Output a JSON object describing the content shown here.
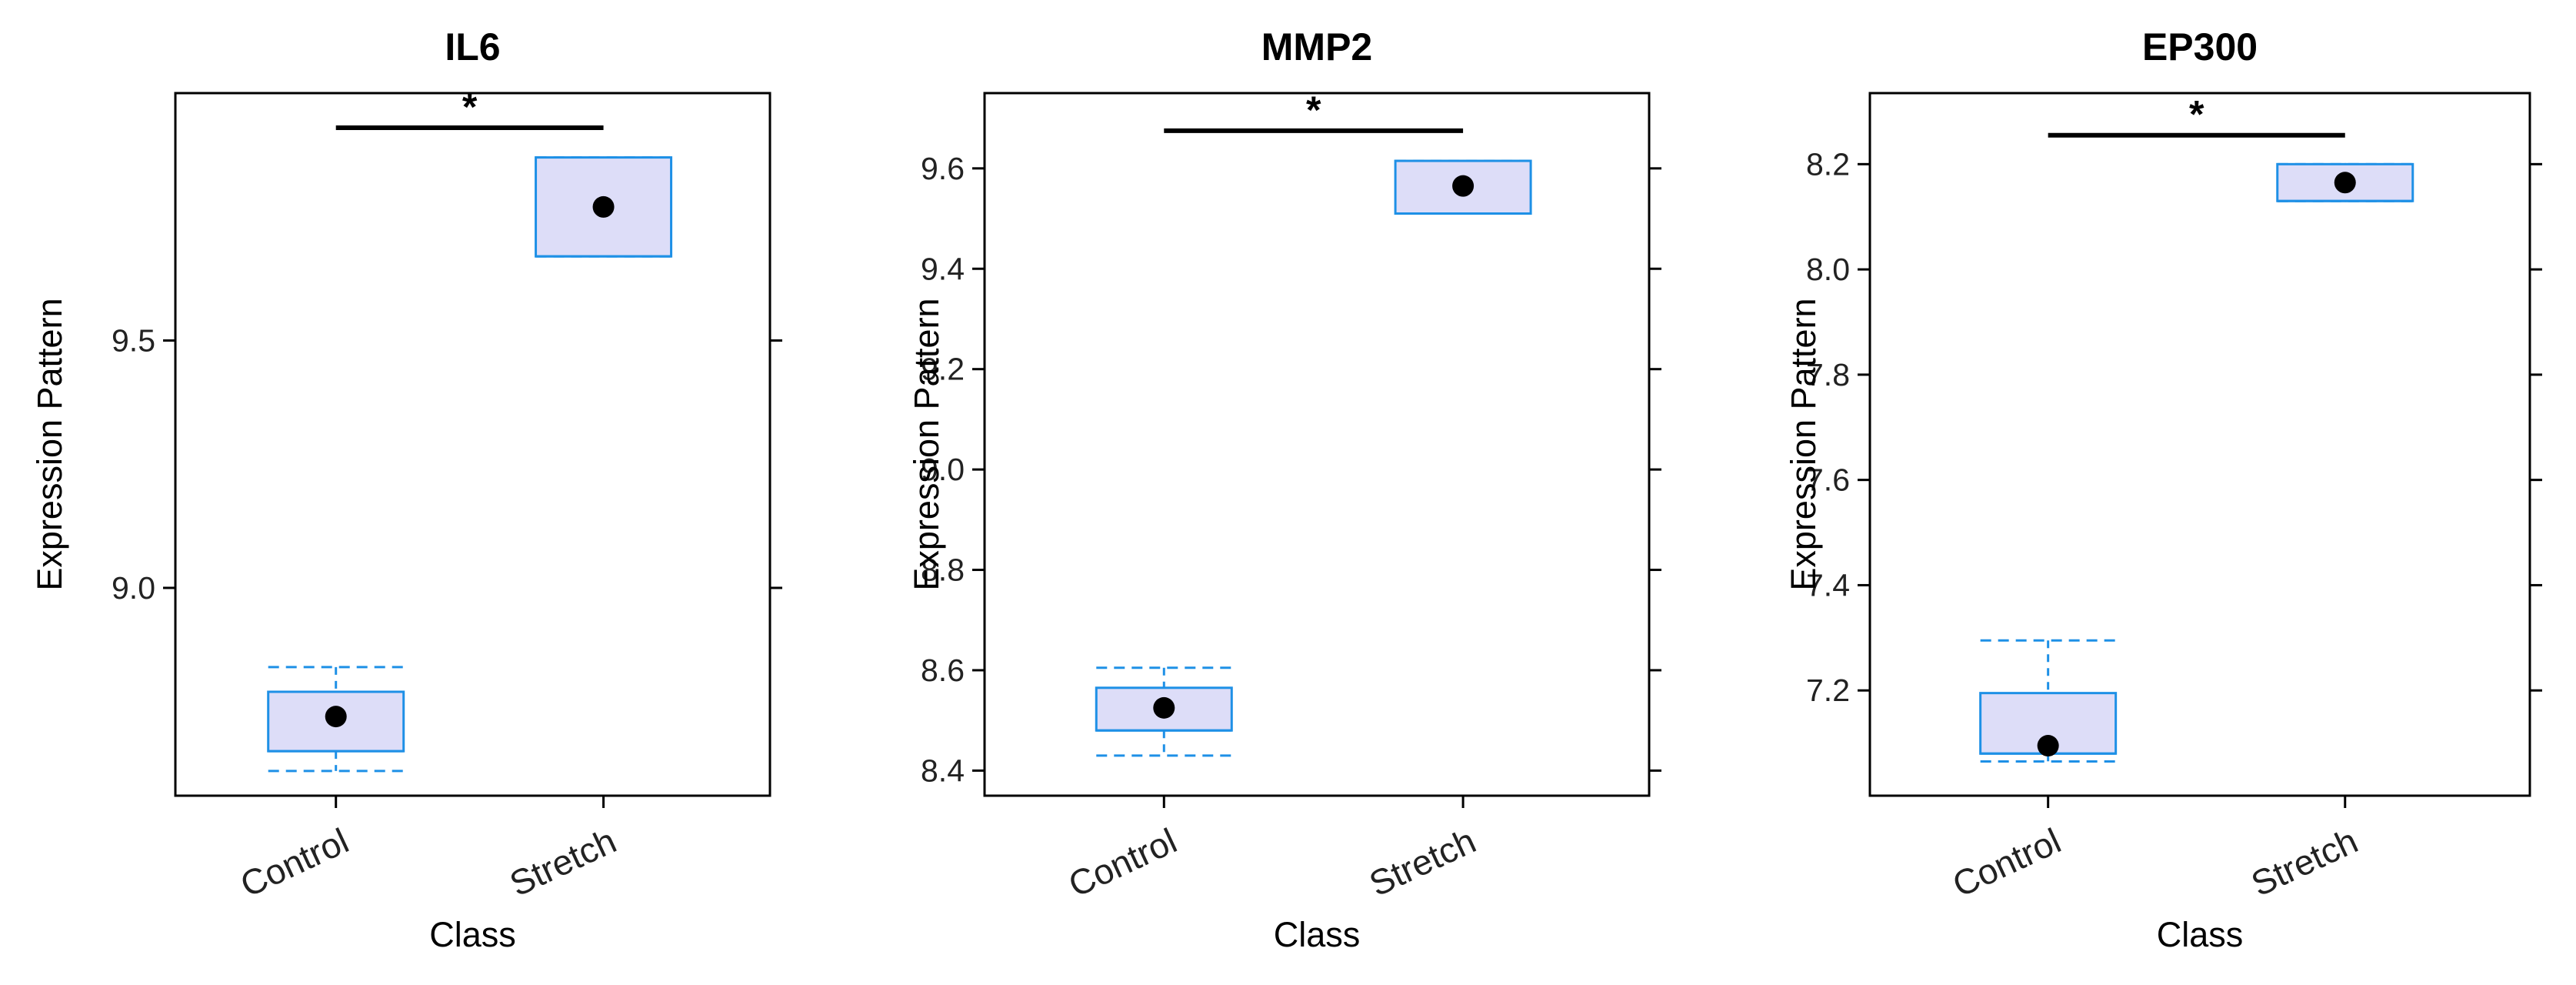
{
  "chart_data": [
    {
      "type": "box",
      "title": "IL6",
      "xlabel": "Class",
      "ylabel": "Expression Pattern",
      "categories": [
        "Control",
        "Stretch"
      ],
      "ylim": [
        8.58,
        10.0
      ],
      "y_ticks": [
        9.0,
        9.5
      ],
      "y_tick_labels": [
        "9.0",
        "9.5"
      ],
      "boxes": [
        {
          "category": "Control",
          "q1": 8.67,
          "median": 8.67,
          "q3": 8.79,
          "whisker_low": 8.63,
          "whisker_high": 8.84,
          "mean": 8.74
        },
        {
          "category": "Stretch",
          "q1": 9.67,
          "median": 9.67,
          "q3": 9.87,
          "whisker_low": 9.67,
          "whisker_high": 9.87,
          "mean": 9.77
        }
      ],
      "significance": {
        "between": [
          "Control",
          "Stretch"
        ],
        "label": "*",
        "y": 9.93
      }
    },
    {
      "type": "box",
      "title": "MMP2",
      "xlabel": "Class",
      "ylabel": "Expression Pattern",
      "categories": [
        "Control",
        "Stretch"
      ],
      "ylim": [
        8.35,
        9.75
      ],
      "y_ticks": [
        8.4,
        8.6,
        8.8,
        9.0,
        9.2,
        9.4,
        9.6
      ],
      "y_tick_labels": [
        "8.4",
        "8.6",
        "8.8",
        "9.0",
        "9.2",
        "9.4",
        "9.6"
      ],
      "boxes": [
        {
          "category": "Control",
          "q1": 8.48,
          "median": 8.48,
          "q3": 8.565,
          "whisker_low": 8.43,
          "whisker_high": 8.605,
          "mean": 8.525
        },
        {
          "category": "Stretch",
          "q1": 9.51,
          "median": 9.51,
          "q3": 9.615,
          "whisker_low": 9.51,
          "whisker_high": 9.615,
          "mean": 9.565
        }
      ],
      "significance": {
        "between": [
          "Control",
          "Stretch"
        ],
        "label": "*",
        "y": 9.675
      }
    },
    {
      "type": "box",
      "title": "EP300",
      "xlabel": "Class",
      "ylabel": "Expression Pattern",
      "categories": [
        "Control",
        "Stretch"
      ],
      "ylim": [
        7.0,
        8.335
      ],
      "y_ticks": [
        7.2,
        7.4,
        7.6,
        7.8,
        8.0,
        8.2
      ],
      "y_tick_labels": [
        "7.2",
        "7.4",
        "7.6",
        "7.8",
        "8.0",
        "8.2"
      ],
      "boxes": [
        {
          "category": "Control",
          "q1": 7.08,
          "median": 7.08,
          "q3": 7.195,
          "whisker_low": 7.065,
          "whisker_high": 7.295,
          "mean": 7.095
        },
        {
          "category": "Stretch",
          "q1": 8.13,
          "median": 8.13,
          "q3": 8.2,
          "whisker_low": 8.13,
          "whisker_high": 8.2,
          "mean": 8.165
        }
      ],
      "significance": {
        "between": [
          "Control",
          "Stretch"
        ],
        "label": "*",
        "y": 8.255
      }
    }
  ],
  "colors": {
    "box_fill": "#ddddf8",
    "box_stroke": "#1e90e6",
    "whisker": "#1e90e6",
    "mean_point": "#000000",
    "significance_bar": "#000000",
    "frame": "#000000"
  }
}
